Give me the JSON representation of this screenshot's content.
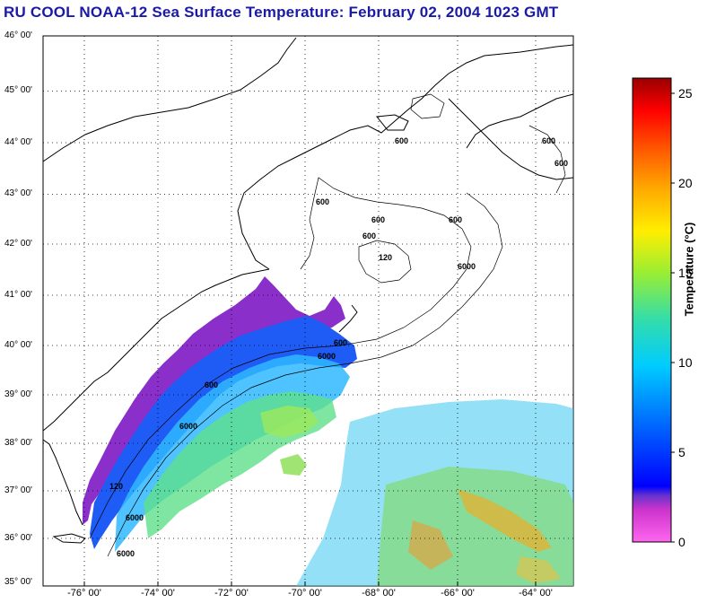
{
  "title": "RU COOL  NOAA-12  Sea Surface Temperature:  February 02, 2004 1023 GMT",
  "map": {
    "lat_labels": [
      "46° 00'",
      "45° 00'",
      "44° 00'",
      "43° 00'",
      "42° 00'",
      "41° 00'",
      "40° 00'",
      "39° 00'",
      "38° 00'",
      "37° 00'",
      "36° 00'",
      "35° 00'"
    ],
    "lon_labels": [
      "-76° 00'",
      "-74° 00'",
      "-72° 00'",
      "-70° 00'",
      "-68° 00'",
      "-66° 00'",
      "-64° 00'"
    ],
    "isobath_labels": [
      "600",
      "600",
      "600",
      "600",
      "600",
      "600",
      "600",
      "600",
      "6000",
      "6000",
      "6000",
      "6000",
      "120",
      "120",
      "6000",
      "600"
    ]
  },
  "colorbar": {
    "title": "Temperature (°C)",
    "ticks": [
      "25",
      "20",
      "15",
      "10",
      "5",
      "0"
    ],
    "range": [
      0,
      26
    ],
    "colors": [
      "#ff66ee",
      "#cc33cc",
      "#6633cc",
      "#0000ff",
      "#0066ff",
      "#00ccff",
      "#33ddaa",
      "#99ee33",
      "#ffee00",
      "#ffaa00",
      "#ff5500",
      "#ff0000",
      "#990000"
    ]
  }
}
